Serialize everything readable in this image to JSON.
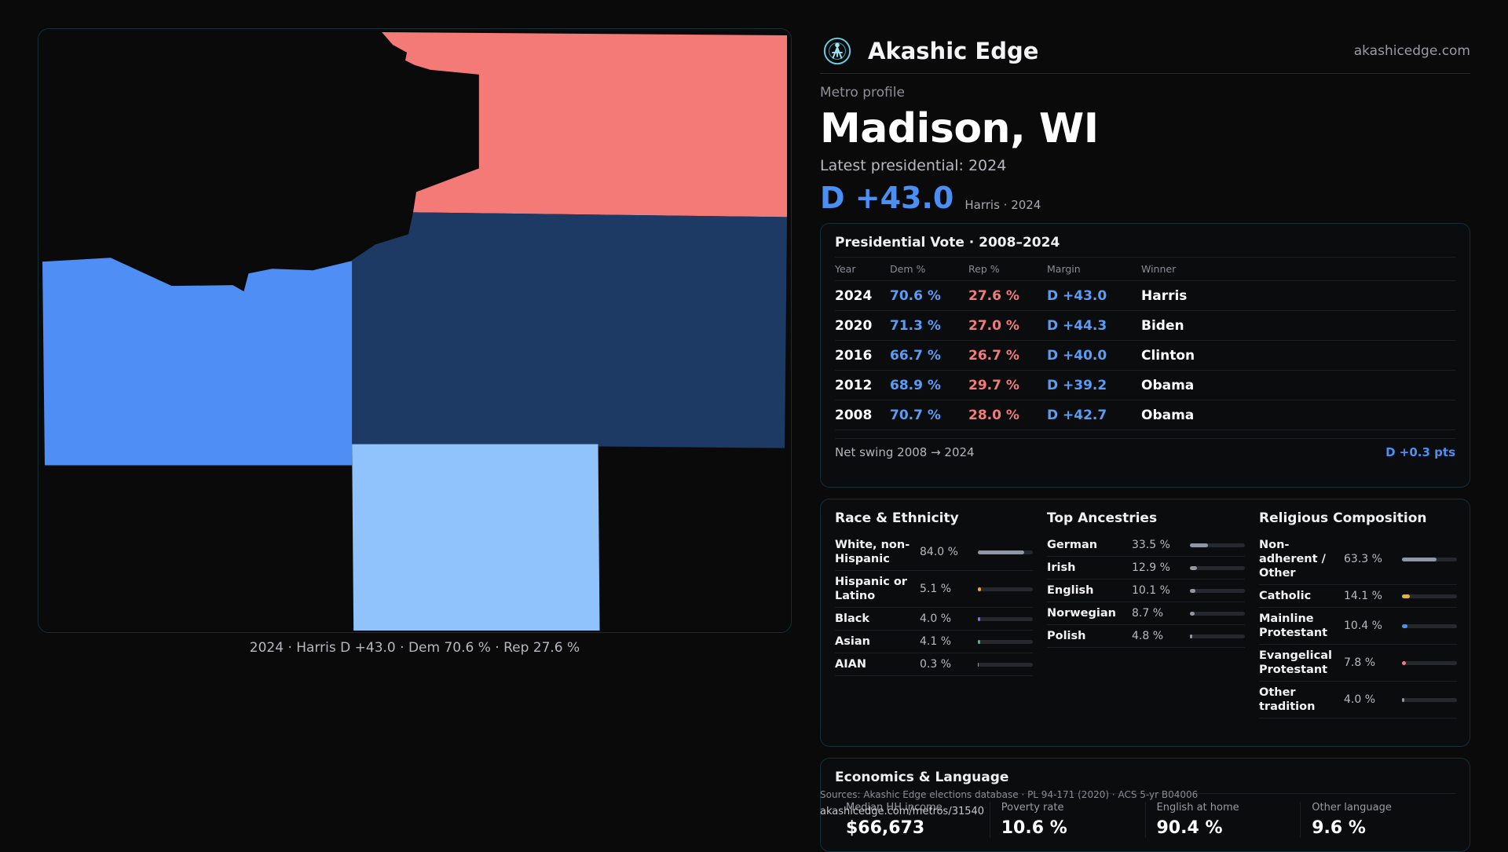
{
  "brand": {
    "name": "Akashic Edge",
    "url": "akashicedge.com"
  },
  "kicker": "Metro profile",
  "metro_title": "Madison, WI",
  "latest_label": "Latest presidential: 2024",
  "headline_margin": "D +43.0",
  "headline_sub": "Harris · 2024",
  "map_caption": "2024 · Harris D +43.0 · Dem 70.6 % · Rep 27.6 %",
  "colors": {
    "dem": "#5b9cf5",
    "rep": "#f27b7b",
    "accent": "#4a90f4",
    "map_rep": "#f47a78",
    "map_dem_dark": "#1d3a64",
    "map_dem_mid": "#4f8ef5",
    "map_dem_light": "#90c2fb"
  },
  "vote": {
    "title": "Presidential Vote · 2008–2024",
    "headers": {
      "year": "Year",
      "dem": "Dem %",
      "rep": "Rep %",
      "margin": "Margin",
      "winner": "Winner"
    },
    "rows": [
      {
        "year": "2024",
        "dem": "70.6 %",
        "rep": "27.6 %",
        "margin": "D +43.0",
        "winner": "Harris"
      },
      {
        "year": "2020",
        "dem": "71.3 %",
        "rep": "27.0 %",
        "margin": "D +44.3",
        "winner": "Biden"
      },
      {
        "year": "2016",
        "dem": "66.7 %",
        "rep": "26.7 %",
        "margin": "D +40.0",
        "winner": "Clinton"
      },
      {
        "year": "2012",
        "dem": "68.9 %",
        "rep": "29.7 %",
        "margin": "D +39.2",
        "winner": "Obama"
      },
      {
        "year": "2008",
        "dem": "70.7 %",
        "rep": "28.0 %",
        "margin": "D +42.7",
        "winner": "Obama"
      }
    ],
    "swing_label": "Net swing 2008 → 2024",
    "swing_value": "D +0.3 pts"
  },
  "race": {
    "title": "Race & Ethnicity",
    "rows": [
      {
        "label": "White, non-Hispanic",
        "value": "84.0 %",
        "pct": 84.0,
        "color": "#8e97a3"
      },
      {
        "label": "Hispanic or Latino",
        "value": "5.1 %",
        "pct": 5.1,
        "color": "#e8a23a"
      },
      {
        "label": "Black",
        "value": "4.0 %",
        "pct": 4.0,
        "color": "#8a6fd8"
      },
      {
        "label": "Asian",
        "value": "4.1 %",
        "pct": 4.1,
        "color": "#3ec27a"
      },
      {
        "label": "AIAN",
        "value": "0.3 %",
        "pct": 0.3,
        "color": "#8e97a3"
      }
    ]
  },
  "ancestry": {
    "title": "Top Ancestries",
    "rows": [
      {
        "label": "German",
        "value": "33.5 %",
        "pct": 33.5,
        "color": "#8e97a3"
      },
      {
        "label": "Irish",
        "value": "12.9 %",
        "pct": 12.9,
        "color": "#8e97a3"
      },
      {
        "label": "English",
        "value": "10.1 %",
        "pct": 10.1,
        "color": "#8e97a3"
      },
      {
        "label": "Norwegian",
        "value": "8.7 %",
        "pct": 8.7,
        "color": "#8e97a3"
      },
      {
        "label": "Polish",
        "value": "4.8 %",
        "pct": 4.8,
        "color": "#8e97a3"
      }
    ]
  },
  "religion": {
    "title": "Religious Composition",
    "rows": [
      {
        "label": "Non-adherent / Other",
        "value": "63.3 %",
        "pct": 63.3,
        "color": "#8e97a3"
      },
      {
        "label": "Catholic",
        "value": "14.1 %",
        "pct": 14.1,
        "color": "#e8b23a"
      },
      {
        "label": "Mainline Protestant",
        "value": "10.4 %",
        "pct": 10.4,
        "color": "#4a90f4"
      },
      {
        "label": "Evangelical Protestant",
        "value": "7.8 %",
        "pct": 7.8,
        "color": "#f27b7b"
      },
      {
        "label": "Other tradition",
        "value": "4.0 %",
        "pct": 4.0,
        "color": "#8e97a3"
      }
    ]
  },
  "economics": {
    "title": "Economics & Language",
    "cells": [
      {
        "label": "Median HH income",
        "value": "$66,673"
      },
      {
        "label": "Poverty rate",
        "value": "10.6 %"
      },
      {
        "label": "English at home",
        "value": "90.4 %"
      },
      {
        "label": "Other language",
        "value": "9.6 %"
      }
    ]
  },
  "sources": "Sources: Akashic Edge elections database · PL 94-171 (2020) · ACS 5-yr B04006",
  "footer_url": "akashicedge.com/metros/31540"
}
